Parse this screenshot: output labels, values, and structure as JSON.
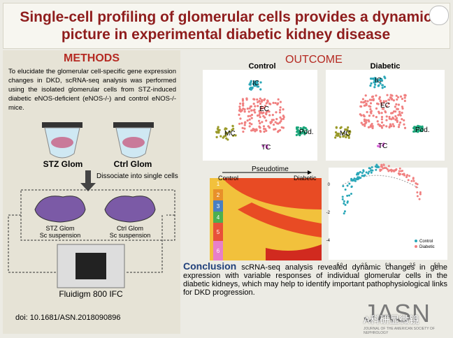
{
  "header": {
    "title_lines": [
      "Single-cell profiling of glomerular cells provides a dynamic",
      "picture in experimental diabetic kidney disease"
    ]
  },
  "methods": {
    "heading": "METHODS",
    "text": "To elucidate the glomerular cell-specific gene expression changes in DKD, scRNA-seq analysis was performed using the isolated glomerular cells from STZ-induced diabetic eNOS-deficient (eNOS-/-) and control eNOS-/- mice.",
    "tubes": [
      "STZ Glom",
      "Ctrl Glom"
    ],
    "step": "Dissociate into single cells",
    "suspensions": [
      [
        "STZ Glom",
        "Sc suspension"
      ],
      [
        "Ctrl Glom",
        "Sc suspension"
      ]
    ],
    "chip": "Fluidigm 800 IFC"
  },
  "doi": "doi: 10.1681/ASN.2018090896",
  "outcome": {
    "heading": "OUTCOME",
    "tsne": [
      {
        "title": "Control",
        "clusters": [
          "IC",
          "EC",
          "MC",
          "TC",
          "Pod."
        ]
      },
      {
        "title": "Diabetic",
        "clusters": [
          "IC",
          "EC",
          "MC",
          "TC",
          "Pod."
        ]
      }
    ],
    "heatmap": {
      "axis": "Pseudotime",
      "start": "Control",
      "end": "Diabetic",
      "rows": [
        "1",
        "2",
        "3",
        "4",
        "5",
        "6"
      ]
    },
    "trajectory": {
      "xticks": [
        "-5.0",
        "-2.5",
        "0.0",
        "2.5",
        "5.0"
      ],
      "yticks": [
        "0",
        "-2",
        "-4"
      ],
      "legend": [
        "Control",
        "Diabetic"
      ]
    }
  },
  "conclusion": {
    "label": "Conclusion",
    "text": "scRNA-seq analysis revealed dynamic changes in gene expression with variable responses of individual glomerular cells in the diabetic kidneys, which may help to identify important pathophysiological links for DKD progression."
  },
  "journal": {
    "name": "JASN",
    "full": "JOURNAL OF THE AMERICAN SOCIETY OF NEPHROLOGY",
    "watermark": "A科研显微镜"
  }
}
